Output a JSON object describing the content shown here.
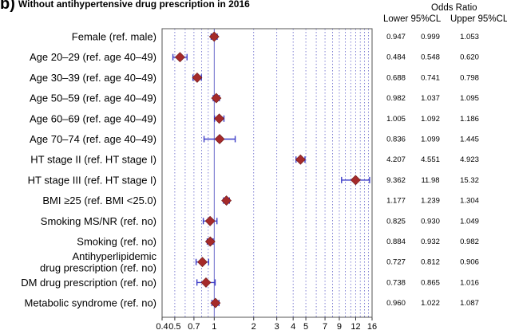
{
  "heading_prefix": "b)",
  "heading": "Without antihypertensive drug prescription in 2016",
  "table_header": {
    "group": "Odds Ratio",
    "lower": "Lower 95%CL",
    "upper": "Upper 95%CL"
  },
  "chart_data": {
    "type": "forest",
    "x_scale": "log",
    "xlim": [
      0.4,
      16
    ],
    "reference_line": 1,
    "xticks": [
      0.4,
      0.5,
      0.7,
      1,
      2,
      3,
      4,
      5,
      7,
      9,
      12,
      16
    ],
    "xtick_labels": [
      "0.4",
      "0.5",
      "0.7",
      "1",
      "2",
      "3",
      "4",
      "5",
      "7",
      "9",
      "12",
      "16"
    ],
    "grid_lines": [
      0.5,
      0.6,
      0.7,
      0.8,
      0.9,
      1,
      2,
      3,
      4,
      5,
      6,
      7,
      8,
      9,
      10,
      11,
      12,
      13,
      14,
      15,
      16
    ],
    "marker_color": "#a52a2a",
    "ci_color": "#3e3ec8",
    "grid_color": "#4a4ac0",
    "rows": [
      {
        "label": [
          "Female (ref. male)"
        ],
        "lower": "0.947",
        "or": "0.999",
        "upper": "1.053"
      },
      {
        "label": [
          "Age 20–29 (ref. age 40–49)"
        ],
        "lower": "0.484",
        "or": "0.548",
        "upper": "0.620"
      },
      {
        "label": [
          "Age 30–39 (ref. age 40–49)"
        ],
        "lower": "0.688",
        "or": "0.741",
        "upper": "0.798"
      },
      {
        "label": [
          "Age 50–59 (ref. age 40–49)"
        ],
        "lower": "0.982",
        "or": "1.037",
        "upper": "1.095"
      },
      {
        "label": [
          "Age 60–69 (ref. age 40–49)"
        ],
        "lower": "1.005",
        "or": "1.092",
        "upper": "1.186"
      },
      {
        "label": [
          "Age 70–74 (ref. age 40–49)"
        ],
        "lower": "0.836",
        "or": "1.099",
        "upper": "1.445"
      },
      {
        "label": [
          "HT stage II (ref. HT stage I)"
        ],
        "lower": "4.207",
        "or": "4.551",
        "upper": "4.923"
      },
      {
        "label": [
          "HT stage III (ref. HT stage I)"
        ],
        "lower": "9.362",
        "or": "11.98",
        "upper": "15.32"
      },
      {
        "label": [
          "BMI ≥25 (ref. BMI <25.0)"
        ],
        "lower": "1.177",
        "or": "1.239",
        "upper": "1.304"
      },
      {
        "label": [
          "Smoking MS/NR (ref. no)"
        ],
        "lower": "0.825",
        "or": "0.930",
        "upper": "1.049"
      },
      {
        "label": [
          "Smoking (ref. no)"
        ],
        "lower": "0.884",
        "or": "0.932",
        "upper": "0.982"
      },
      {
        "label": [
          "Antihyperlipidemic",
          "drug prescription (ref. no)"
        ],
        "lower": "0.727",
        "or": "0.812",
        "upper": "0.906"
      },
      {
        "label": [
          "DM drug prescription (ref. no)"
        ],
        "lower": "0.738",
        "or": "0.865",
        "upper": "1.016"
      },
      {
        "label": [
          "Metabolic syndrome (ref. no)"
        ],
        "lower": "0.960",
        "or": "1.022",
        "upper": "1.087"
      }
    ]
  }
}
